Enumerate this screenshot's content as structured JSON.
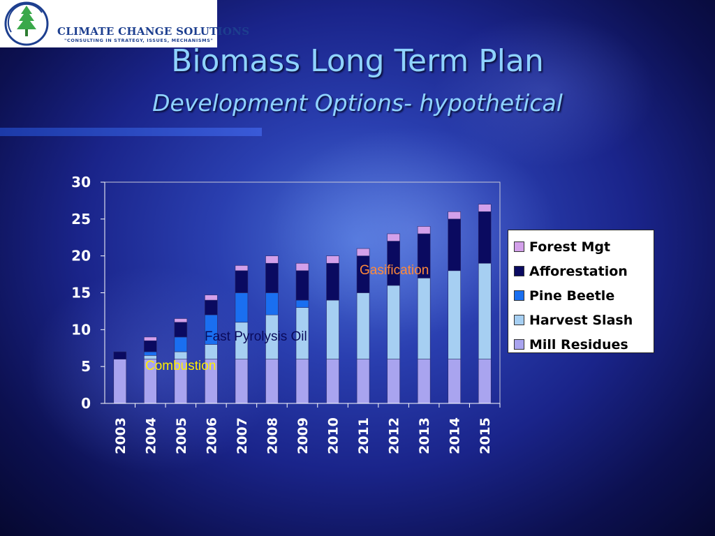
{
  "logo": {
    "name": "CLIMATE CHANGE SOLUTIONS",
    "tagline": "\"CONSULTING IN STRATEGY, ISSUES, MECHANISMS\""
  },
  "title": "Biomass Long Term Plan",
  "subtitle": "Development Options- hypothetical",
  "annotations": {
    "combustion": "Combustion",
    "fast_pyrolysis": "Fast Pyrolysis Oil",
    "gasification": "Gasification"
  },
  "colors": {
    "mill_residues": "#a9a4ef",
    "harvest_slash": "#a6cff2",
    "pine_beetle": "#1a6ff0",
    "afforestation": "#0a0a60",
    "forest_mgt": "#d3a0ea",
    "combustion_text": "#ffef00",
    "fast_pyrolysis_text": "#0a0a5a",
    "gasification_text": "#ff8a3a"
  },
  "chart_data": {
    "type": "bar",
    "stacked": true,
    "categories": [
      "2003",
      "2004",
      "2005",
      "2006",
      "2007",
      "2008",
      "2009",
      "2010",
      "2011",
      "2012",
      "2013",
      "2014",
      "2015"
    ],
    "ylim": [
      0,
      30
    ],
    "yticks": [
      0,
      5,
      10,
      15,
      20,
      25,
      30
    ],
    "grid": false,
    "legend_position": "right",
    "series": [
      {
        "name": "Mill Residues",
        "key": "mill_residues",
        "values": [
          6,
          6,
          6,
          6,
          6,
          6,
          6,
          6,
          6,
          6,
          6,
          6,
          6
        ]
      },
      {
        "name": "Harvest Slash",
        "key": "harvest_slash",
        "values": [
          0,
          0.5,
          1,
          2,
          5,
          6,
          7,
          8,
          9,
          10,
          11,
          12,
          13
        ]
      },
      {
        "name": "Pine Beetle",
        "key": "pine_beetle",
        "values": [
          0,
          0.5,
          2,
          4,
          4,
          3,
          1,
          0,
          0,
          0,
          0,
          0,
          0
        ]
      },
      {
        "name": "Afforestation",
        "key": "afforestation",
        "values": [
          1,
          1.5,
          2,
          2,
          3,
          4,
          4,
          5,
          5,
          6,
          6,
          7,
          7
        ]
      },
      {
        "name": "Forest Mgt",
        "key": "forest_mgt",
        "values": [
          0,
          0.5,
          0.5,
          0.7,
          0.7,
          1,
          1,
          1,
          1,
          1,
          1,
          1,
          1
        ]
      }
    ]
  }
}
